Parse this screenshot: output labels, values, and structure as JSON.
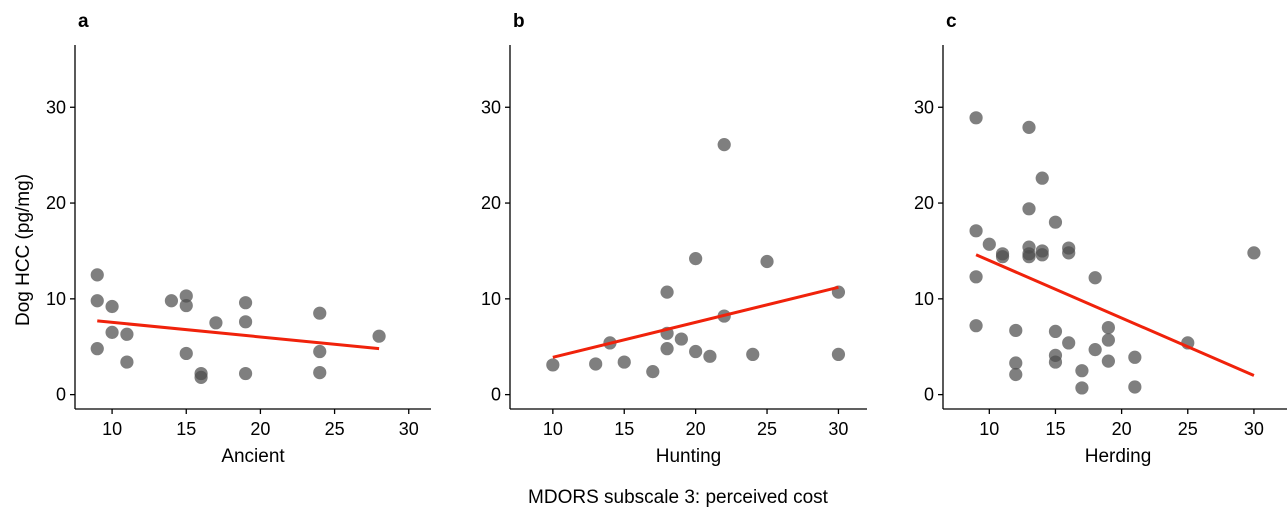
{
  "figure": {
    "x_caption": "MDORS subscale 3: perceived cost",
    "y_title": "Dog HCC (pg/mg)",
    "point_color": "#4d4d4d",
    "fit_color": "#f0220b"
  },
  "chart_data": [
    {
      "type": "scatter",
      "panel": "a",
      "xlabel": "Ancient",
      "ylabel": "Dog HCC (pg/mg)",
      "xlim": [
        7.5,
        31.5
      ],
      "ylim": [
        -1.5,
        36.5
      ],
      "xticks": [
        10,
        15,
        20,
        25,
        30
      ],
      "yticks": [
        0,
        10,
        20,
        30
      ],
      "grid": false,
      "points": [
        [
          9,
          12.5
        ],
        [
          9,
          9.8
        ],
        [
          9,
          4.8
        ],
        [
          10,
          9.2
        ],
        [
          10,
          6.5
        ],
        [
          11,
          6.3
        ],
        [
          11,
          3.4
        ],
        [
          14,
          9.8
        ],
        [
          15,
          10.3
        ],
        [
          15,
          9.3
        ],
        [
          15,
          4.3
        ],
        [
          16,
          2.2
        ],
        [
          16,
          1.8
        ],
        [
          17,
          7.5
        ],
        [
          19,
          9.6
        ],
        [
          19,
          7.6
        ],
        [
          19,
          2.2
        ],
        [
          24,
          8.5
        ],
        [
          24,
          4.5
        ],
        [
          24,
          2.3
        ],
        [
          28,
          6.1
        ]
      ],
      "fit": [
        [
          9,
          7.7
        ],
        [
          28,
          4.8
        ]
      ]
    },
    {
      "type": "scatter",
      "panel": "b",
      "xlabel": "Hunting",
      "xlim": [
        7.0,
        32.0
      ],
      "ylim": [
        -1.5,
        36.5
      ],
      "xticks": [
        10,
        15,
        20,
        25,
        30
      ],
      "yticks": [
        0,
        10,
        20,
        30
      ],
      "grid": false,
      "points": [
        [
          10,
          3.1
        ],
        [
          13,
          3.2
        ],
        [
          14,
          5.4
        ],
        [
          15,
          3.4
        ],
        [
          17,
          2.4
        ],
        [
          18,
          10.7
        ],
        [
          18,
          6.4
        ],
        [
          18,
          4.8
        ],
        [
          19,
          5.8
        ],
        [
          20,
          14.2
        ],
        [
          20,
          4.5
        ],
        [
          21,
          4.0
        ],
        [
          22,
          26.1
        ],
        [
          22,
          8.2
        ],
        [
          24,
          4.2
        ],
        [
          25,
          13.9
        ],
        [
          30,
          10.7
        ],
        [
          30,
          4.2
        ]
      ],
      "fit": [
        [
          10,
          3.9
        ],
        [
          30,
          11.2
        ]
      ]
    },
    {
      "type": "scatter",
      "panel": "c",
      "xlabel": "Herding",
      "xlim": [
        6.5,
        32.5
      ],
      "ylim": [
        -1.5,
        36.5
      ],
      "xticks": [
        10,
        15,
        20,
        25,
        30
      ],
      "yticks": [
        0,
        10,
        20,
        30
      ],
      "grid": false,
      "points": [
        [
          9,
          28.9
        ],
        [
          9,
          17.1
        ],
        [
          9,
          12.3
        ],
        [
          9,
          7.2
        ],
        [
          10,
          15.7
        ],
        [
          11,
          14.7
        ],
        [
          11,
          14.4
        ],
        [
          12,
          6.7
        ],
        [
          12,
          3.3
        ],
        [
          12,
          2.1
        ],
        [
          13,
          27.9
        ],
        [
          13,
          19.4
        ],
        [
          13,
          15.4
        ],
        [
          13,
          14.7
        ],
        [
          13,
          14.4
        ],
        [
          14,
          22.6
        ],
        [
          14,
          15.0
        ],
        [
          14,
          14.6
        ],
        [
          15,
          18.0
        ],
        [
          15,
          6.6
        ],
        [
          15,
          4.1
        ],
        [
          15,
          3.4
        ],
        [
          16,
          15.3
        ],
        [
          16,
          14.8
        ],
        [
          16,
          5.4
        ],
        [
          17,
          2.5
        ],
        [
          17,
          0.7
        ],
        [
          18,
          12.2
        ],
        [
          18,
          4.7
        ],
        [
          19,
          7.0
        ],
        [
          19,
          5.7
        ],
        [
          19,
          3.5
        ],
        [
          21,
          3.9
        ],
        [
          21,
          0.8
        ],
        [
          25,
          5.4
        ],
        [
          30,
          14.8
        ]
      ],
      "fit": [
        [
          9,
          14.6
        ],
        [
          30,
          2.0
        ]
      ]
    }
  ]
}
